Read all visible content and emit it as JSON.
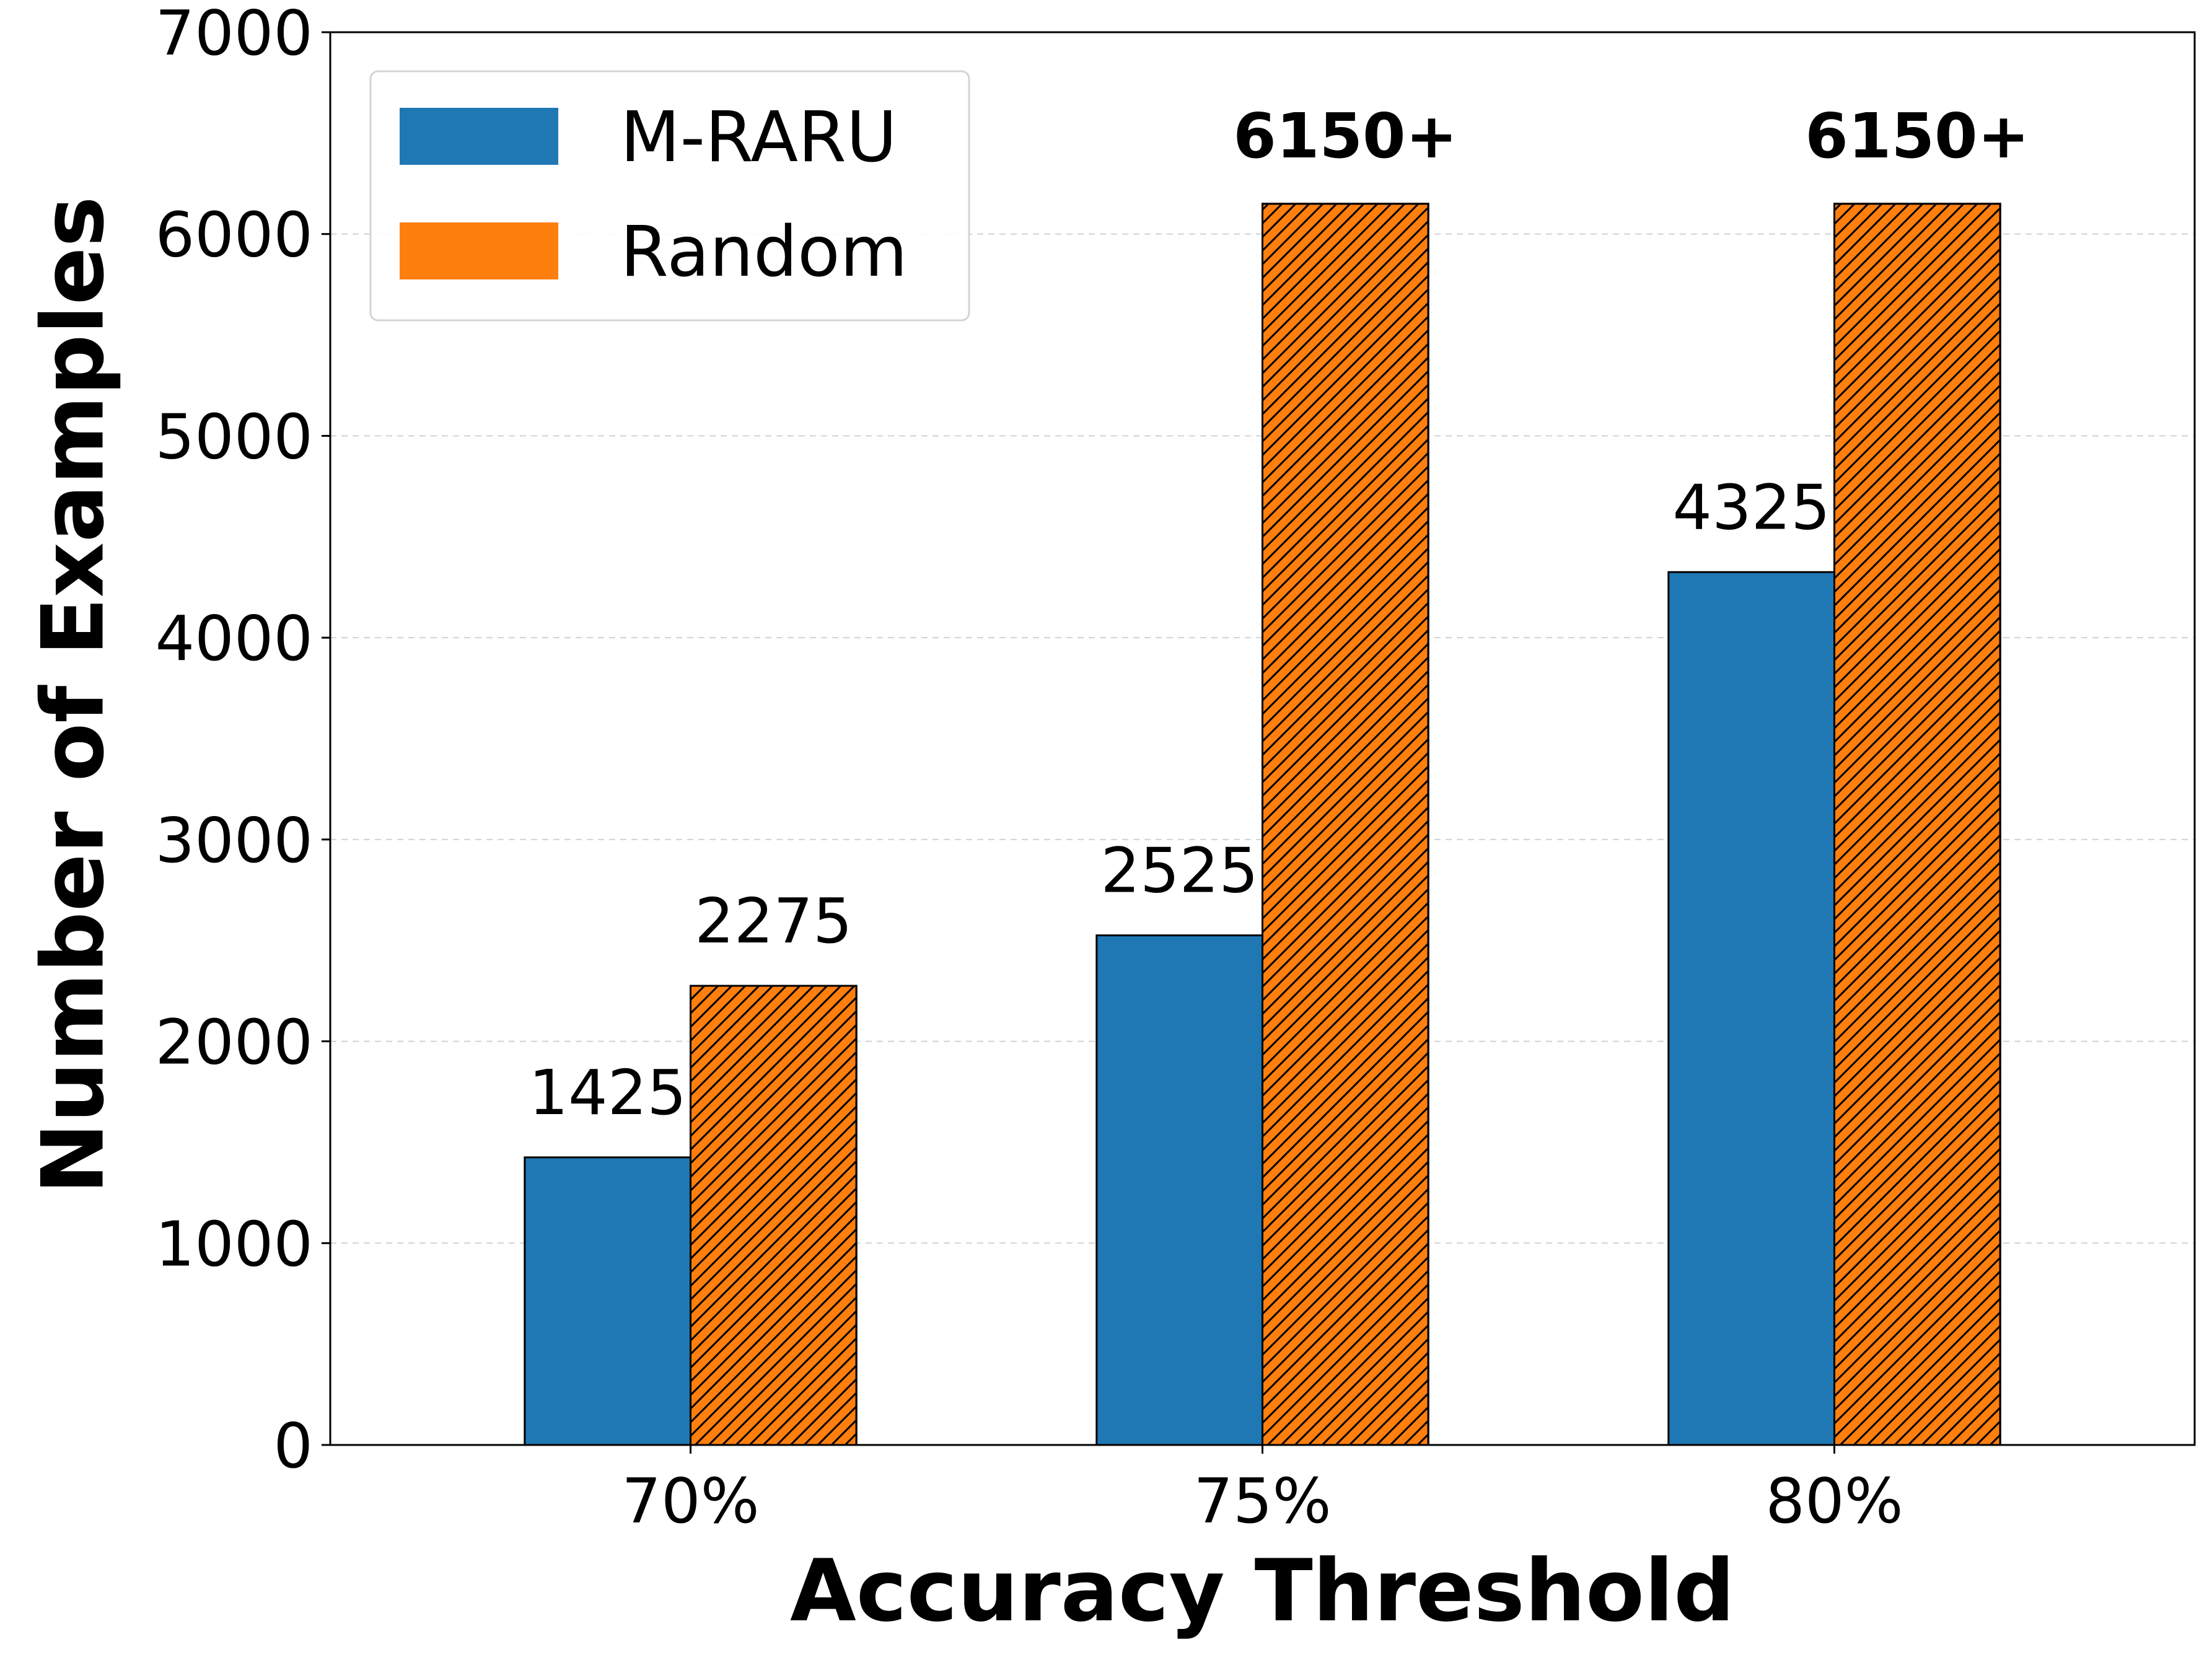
{
  "chart_data": {
    "type": "bar",
    "xlabel": "Accuracy Threshold",
    "ylabel": "Number of Examples",
    "categories": [
      "70%",
      "75%",
      "80%"
    ],
    "ylim": [
      0,
      7000
    ],
    "yticks": [
      0,
      1000,
      2000,
      3000,
      4000,
      5000,
      6000,
      7000
    ],
    "grid": "horizontal dashed",
    "legend_position": "top-left",
    "series": [
      {
        "name": "M-RARU",
        "color": "#1f77b4",
        "hatch": false,
        "values": [
          1425,
          2525,
          4325
        ],
        "labels": [
          "1425",
          "2525",
          "4325"
        ],
        "label_bold": [
          false,
          false,
          false
        ]
      },
      {
        "name": "Random",
        "color": "#ff7f0e",
        "hatch": true,
        "values": [
          2275,
          6150,
          6150
        ],
        "labels": [
          "2275",
          "6150+",
          "6150+"
        ],
        "label_bold": [
          false,
          true,
          true
        ]
      }
    ]
  }
}
